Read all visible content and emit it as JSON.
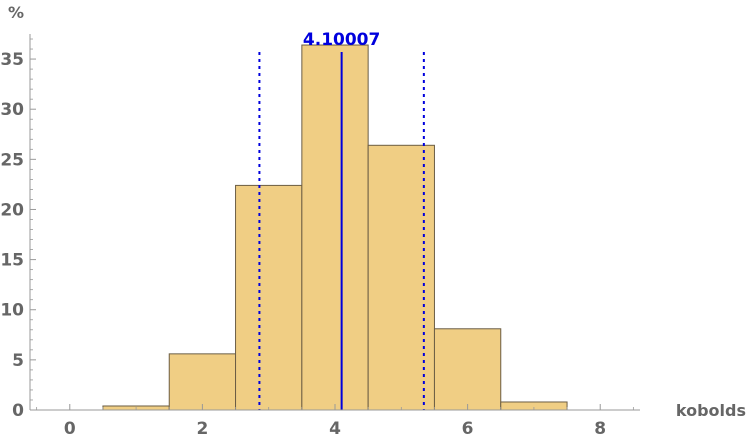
{
  "chart_data": {
    "type": "bar",
    "subtype": "histogram",
    "xlabel": "kobolds",
    "ylabel": "%",
    "xlim": [
      -0.6,
      8.6
    ],
    "ylim": [
      0,
      37.5
    ],
    "xticks": [
      0,
      2,
      4,
      6,
      8
    ],
    "yticks": [
      0,
      5,
      10,
      15,
      20,
      25,
      30,
      35
    ],
    "bins": [
      {
        "x0": 0.5,
        "x1": 1.5,
        "value": 0.4
      },
      {
        "x0": 1.5,
        "x1": 2.5,
        "value": 5.6
      },
      {
        "x0": 2.5,
        "x1": 3.5,
        "value": 22.4
      },
      {
        "x0": 3.5,
        "x1": 4.5,
        "value": 36.4
      },
      {
        "x0": 4.5,
        "x1": 5.5,
        "value": 26.4
      },
      {
        "x0": 5.5,
        "x1": 6.5,
        "value": 8.1
      },
      {
        "x0": 6.5,
        "x1": 7.5,
        "value": 0.8
      }
    ],
    "mean": {
      "value": 4.10007,
      "label": "4.10007"
    },
    "sd_lines": [
      2.86,
      5.34
    ],
    "colors": {
      "bar_fill": "#f0ce84",
      "bar_stroke": "#6b5d44",
      "mean_line": "#0000dd",
      "sd_line": "#0000dd",
      "axis": "#999999"
    },
    "grid": false
  }
}
